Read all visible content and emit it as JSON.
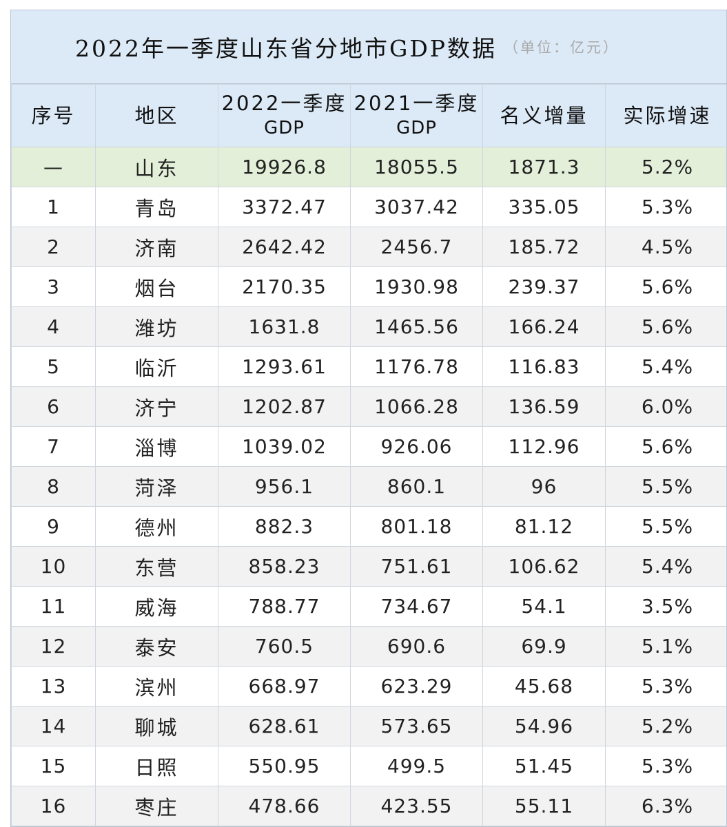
{
  "title": {
    "main": "2022年一季度山东省分地市GDP数据",
    "unit": "（单位：亿元）"
  },
  "columns": [
    {
      "line1": "序号",
      "line2": ""
    },
    {
      "line1": "地区",
      "line2": ""
    },
    {
      "line1": "2022一季度",
      "line2": "GDP"
    },
    {
      "line1": "2021一季度",
      "line2": "GDP"
    },
    {
      "line1": "名义增量",
      "line2": ""
    },
    {
      "line1": "实际增速",
      "line2": ""
    }
  ],
  "rows": [
    {
      "no": "—",
      "region": "山东",
      "gdp2022": "19926.8",
      "gdp2021": "18055.5",
      "increase": "1871.3",
      "growth": "5.2%"
    },
    {
      "no": "1",
      "region": "青岛",
      "gdp2022": "3372.47",
      "gdp2021": "3037.42",
      "increase": "335.05",
      "growth": "5.3%"
    },
    {
      "no": "2",
      "region": "济南",
      "gdp2022": "2642.42",
      "gdp2021": "2456.7",
      "increase": "185.72",
      "growth": "4.5%"
    },
    {
      "no": "3",
      "region": "烟台",
      "gdp2022": "2170.35",
      "gdp2021": "1930.98",
      "increase": "239.37",
      "growth": "5.6%"
    },
    {
      "no": "4",
      "region": "潍坊",
      "gdp2022": "1631.8",
      "gdp2021": "1465.56",
      "increase": "166.24",
      "growth": "5.6%"
    },
    {
      "no": "5",
      "region": "临沂",
      "gdp2022": "1293.61",
      "gdp2021": "1176.78",
      "increase": "116.83",
      "growth": "5.4%"
    },
    {
      "no": "6",
      "region": "济宁",
      "gdp2022": "1202.87",
      "gdp2021": "1066.28",
      "increase": "136.59",
      "growth": "6.0%"
    },
    {
      "no": "7",
      "region": "淄博",
      "gdp2022": "1039.02",
      "gdp2021": "926.06",
      "increase": "112.96",
      "growth": "5.6%"
    },
    {
      "no": "8",
      "region": "菏泽",
      "gdp2022": "956.1",
      "gdp2021": "860.1",
      "increase": "96",
      "growth": "5.5%"
    },
    {
      "no": "9",
      "region": "德州",
      "gdp2022": "882.3",
      "gdp2021": "801.18",
      "increase": "81.12",
      "growth": "5.5%"
    },
    {
      "no": "10",
      "region": "东营",
      "gdp2022": "858.23",
      "gdp2021": "751.61",
      "increase": "106.62",
      "growth": "5.4%"
    },
    {
      "no": "11",
      "region": "威海",
      "gdp2022": "788.77",
      "gdp2021": "734.67",
      "increase": "54.1",
      "growth": "3.5%"
    },
    {
      "no": "12",
      "region": "泰安",
      "gdp2022": "760.5",
      "gdp2021": "690.6",
      "increase": "69.9",
      "growth": "5.1%"
    },
    {
      "no": "13",
      "region": "滨州",
      "gdp2022": "668.97",
      "gdp2021": "623.29",
      "increase": "45.68",
      "growth": "5.3%"
    },
    {
      "no": "14",
      "region": "聊城",
      "gdp2022": "628.61",
      "gdp2021": "573.65",
      "increase": "54.96",
      "growth": "5.2%"
    },
    {
      "no": "15",
      "region": "日照",
      "gdp2022": "550.95",
      "gdp2021": "499.5",
      "increase": "51.45",
      "growth": "5.3%"
    },
    {
      "no": "16",
      "region": "枣庄",
      "gdp2022": "478.66",
      "gdp2021": "423.55",
      "increase": "55.11",
      "growth": "6.3%"
    }
  ],
  "colors": {
    "header_bg": "#dce9f6",
    "total_row_bg": "#e3efd9",
    "striped_row_bg": "#f2f2f2",
    "border": "#cfd6de"
  }
}
